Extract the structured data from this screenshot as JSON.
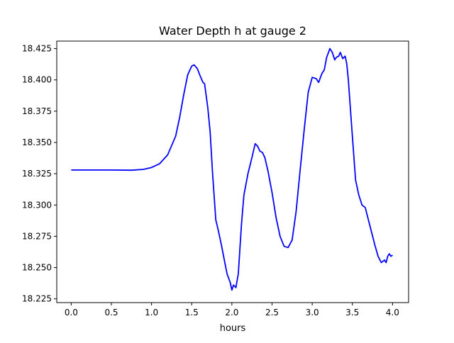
{
  "chart_data": {
    "type": "line",
    "title": "Water Depth h at gauge 2",
    "xlabel": "hours",
    "ylabel": "",
    "xlim": [
      -0.18,
      4.2
    ],
    "ylim": [
      18.222,
      18.431
    ],
    "x_ticks": [
      0.0,
      0.5,
      1.0,
      1.5,
      2.0,
      2.5,
      3.0,
      3.5,
      4.0
    ],
    "x_tick_labels": [
      "0.0",
      "0.5",
      "1.0",
      "1.5",
      "2.0",
      "2.5",
      "3.0",
      "3.5",
      "4.0"
    ],
    "y_ticks": [
      18.225,
      18.25,
      18.275,
      18.3,
      18.325,
      18.35,
      18.375,
      18.4,
      18.425
    ],
    "y_tick_labels": [
      "18.225",
      "18.250",
      "18.275",
      "18.300",
      "18.325",
      "18.350",
      "18.375",
      "18.400",
      "18.425"
    ],
    "grid": false,
    "legend": "none",
    "series": [
      {
        "color": "#0000ff",
        "x": [
          0.0,
          0.25,
          0.5,
          0.75,
          0.9,
          1.0,
          1.1,
          1.2,
          1.3,
          1.35,
          1.4,
          1.45,
          1.5,
          1.53,
          1.57,
          1.6,
          1.64,
          1.66,
          1.7,
          1.73,
          1.76,
          1.8,
          1.83,
          1.87,
          1.9,
          1.94,
          1.98,
          2.0,
          2.02,
          2.05,
          2.08,
          2.1,
          2.12,
          2.15,
          2.2,
          2.25,
          2.29,
          2.32,
          2.35,
          2.38,
          2.41,
          2.45,
          2.5,
          2.55,
          2.6,
          2.65,
          2.7,
          2.75,
          2.8,
          2.85,
          2.9,
          2.95,
          3.0,
          3.05,
          3.08,
          3.12,
          3.15,
          3.18,
          3.22,
          3.25,
          3.28,
          3.3,
          3.33,
          3.35,
          3.38,
          3.41,
          3.43,
          3.45,
          3.47,
          3.5,
          3.54,
          3.58,
          3.62,
          3.66,
          3.7,
          3.74,
          3.78,
          3.82,
          3.86,
          3.9,
          3.92,
          3.94,
          3.96,
          3.98,
          4.0
        ],
        "y": [
          18.328,
          18.328,
          18.328,
          18.3278,
          18.3285,
          18.33,
          18.333,
          18.34,
          18.355,
          18.37,
          18.388,
          18.404,
          18.411,
          18.412,
          18.409,
          18.404,
          18.398,
          18.397,
          18.378,
          18.358,
          18.325,
          18.288,
          18.28,
          18.268,
          18.258,
          18.245,
          18.238,
          18.232,
          18.236,
          18.234,
          18.245,
          18.265,
          18.285,
          18.308,
          18.325,
          18.338,
          18.349,
          18.347,
          18.343,
          18.342,
          18.338,
          18.327,
          18.31,
          18.29,
          18.275,
          18.267,
          18.266,
          18.272,
          18.295,
          18.328,
          18.36,
          18.39,
          18.402,
          18.401,
          18.398,
          18.405,
          18.408,
          18.418,
          18.425,
          18.422,
          18.416,
          18.418,
          18.419,
          18.422,
          18.417,
          18.419,
          18.413,
          18.4,
          18.382,
          18.355,
          18.32,
          18.308,
          18.3,
          18.298,
          18.288,
          18.278,
          18.268,
          18.259,
          18.254,
          18.256,
          18.254,
          18.259,
          18.261,
          18.259,
          18.26
        ]
      }
    ]
  }
}
